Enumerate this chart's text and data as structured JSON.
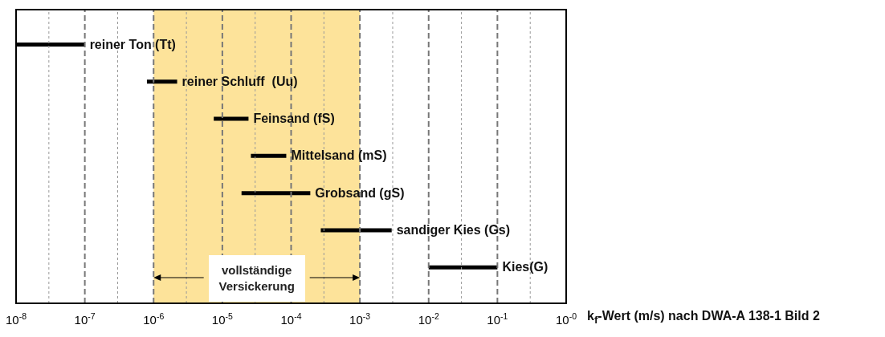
{
  "chart_data": {
    "type": "bar",
    "orientation": "horizontal",
    "xlabel": "k$_{f}$-Wert (m/s) nach DWA-A 138-1 Bild 2",
    "categories": [
      "reiner Ton (Tt)",
      "reiner Schluff  (Uu)",
      "Feinsand (fS)",
      "Mittelsand (mS)",
      "Grobsand (gS)",
      "sandiger Kies (Gs)",
      "Kies(G)"
    ],
    "base": [
      1e-08,
      8e-07,
      7.5e-06,
      2.6e-05,
      1.9e-05,
      0.00027,
      0.01
    ],
    "values": [
      9e-08,
      1.4e-06,
      1.65e-05,
      5.9e-05,
      0.000171,
      0.00263,
      0.09
    ],
    "color": "#000000",
    "log": "x",
    "xlim": [
      1e-08,
      1
    ],
    "xticks": [
      {
        "value": 1e-08,
        "label": "10$^{-8}$"
      },
      {
        "value": 3e-08,
        "label": null
      },
      {
        "value": 1e-07,
        "label": "10$^{-7}$"
      },
      {
        "value": 3e-07,
        "label": null
      },
      {
        "value": 1e-06,
        "label": "10$^{-6}$"
      },
      {
        "value": 3e-06,
        "label": null
      },
      {
        "value": 1e-05,
        "label": "10$^{-5}$"
      },
      {
        "value": 3e-05,
        "label": null
      },
      {
        "value": 0.0001,
        "label": "10$^{-4}$"
      },
      {
        "value": 0.0003,
        "label": null
      },
      {
        "value": 0.001,
        "label": "10$^{-3}$"
      },
      {
        "value": 0.003,
        "label": null
      },
      {
        "value": 0.01,
        "label": "10$^{-2}$"
      },
      {
        "value": 0.03,
        "label": null
      },
      {
        "value": 0.1,
        "label": "10$^{-1}$"
      },
      {
        "value": 0.3,
        "label": null
      },
      {
        "value": 1,
        "label": "10$^{-0}$"
      }
    ],
    "grid": "x",
    "bands": [
      {
        "axis": "x",
        "from": 1e-06,
        "to": 0.001,
        "label": "vollständige Versickerung",
        "color": "#fde39a"
      }
    ]
  }
}
